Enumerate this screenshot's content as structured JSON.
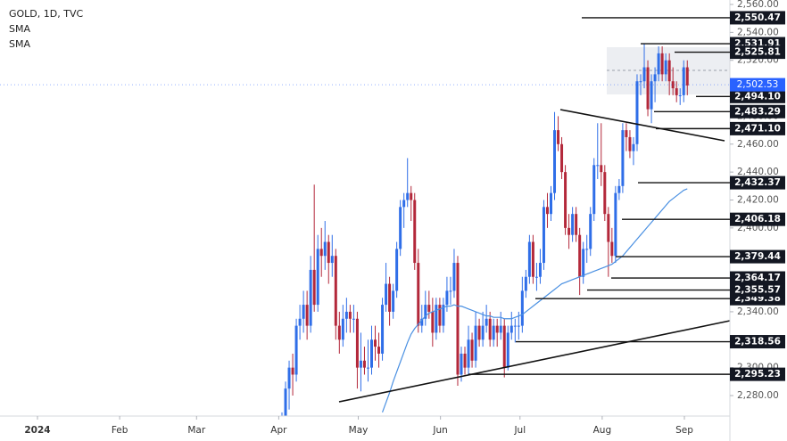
{
  "chart_data": {
    "type": "candlestick",
    "title": "GOLD, 1D, TVC",
    "indicators": [
      "SMA",
      "SMA"
    ],
    "up_color": "#2f6ee8",
    "down_color": "#b3283a",
    "sma_color": "#4a90e2",
    "ylim": [
      2280,
      2560
    ],
    "yticks": [
      {
        "value": 2280,
        "label": "2,280.00"
      },
      {
        "value": 2300,
        "label": "2,300.00"
      },
      {
        "value": 2320,
        "label": "2,320.00"
      },
      {
        "value": 2340,
        "label": "2,340.00"
      },
      {
        "value": 2360,
        "label": "2,360.00"
      },
      {
        "value": 2380,
        "label": "2,380.00"
      },
      {
        "value": 2400,
        "label": "2,400.00"
      },
      {
        "value": 2420,
        "label": "2,420.00"
      },
      {
        "value": 2440,
        "label": "2,440.00"
      },
      {
        "value": 2460,
        "label": "2,460.00"
      },
      {
        "value": 2480,
        "label": "2,480.00"
      },
      {
        "value": 2500,
        "label": "2,500.00"
      },
      {
        "value": 2520,
        "label": "2,520.00"
      },
      {
        "value": 2540,
        "label": "2,540.00"
      },
      {
        "value": 2560,
        "label": "2,560.00"
      }
    ],
    "xticks": [
      {
        "value": 1,
        "label": "2024"
      },
      {
        "value": 32,
        "label": "Feb"
      },
      {
        "value": 61,
        "label": "Mar"
      },
      {
        "value": 92,
        "label": "Apr"
      },
      {
        "value": 122,
        "label": "May"
      },
      {
        "value": 153,
        "label": "Jun"
      },
      {
        "value": 183,
        "label": "Jul"
      },
      {
        "value": 214,
        "label": "Aug"
      },
      {
        "value": 245,
        "label": "Sep"
      }
    ],
    "candles": [
      [
        2240,
        2268,
        2235,
        2262
      ],
      [
        2262,
        2290,
        2258,
        2285
      ],
      [
        2285,
        2305,
        2270,
        2300
      ],
      [
        2300,
        2310,
        2280,
        2295
      ],
      [
        2295,
        2335,
        2290,
        2330
      ],
      [
        2330,
        2345,
        2320,
        2335
      ],
      [
        2335,
        2355,
        2325,
        2345
      ],
      [
        2345,
        2355,
        2320,
        2330
      ],
      [
        2330,
        2380,
        2325,
        2370
      ],
      [
        2370,
        2431,
        2340,
        2345
      ],
      [
        2345,
        2395,
        2340,
        2385
      ],
      [
        2385,
        2400,
        2365,
        2380
      ],
      [
        2380,
        2405,
        2370,
        2390
      ],
      [
        2390,
        2395,
        2360,
        2375
      ],
      [
        2375,
        2395,
        2365,
        2380
      ],
      [
        2380,
        2385,
        2320,
        2330
      ],
      [
        2330,
        2340,
        2310,
        2320
      ],
      [
        2320,
        2345,
        2315,
        2335
      ],
      [
        2335,
        2350,
        2325,
        2340
      ],
      [
        2340,
        2345,
        2325,
        2335
      ],
      [
        2335,
        2345,
        2325,
        2335
      ],
      [
        2335,
        2340,
        2285,
        2300
      ],
      [
        2300,
        2325,
        2283,
        2305
      ],
      [
        2305,
        2315,
        2295,
        2300
      ],
      [
        2300,
        2320,
        2290,
        2300
      ],
      [
        2300,
        2330,
        2295,
        2320
      ],
      [
        2320,
        2330,
        2305,
        2315
      ],
      [
        2315,
        2325,
        2300,
        2310
      ],
      [
        2310,
        2350,
        2305,
        2345
      ],
      [
        2345,
        2375,
        2340,
        2360
      ],
      [
        2360,
        2365,
        2330,
        2340
      ],
      [
        2340,
        2360,
        2335,
        2355
      ],
      [
        2355,
        2390,
        2350,
        2385
      ],
      [
        2385,
        2420,
        2380,
        2415
      ],
      [
        2415,
        2425,
        2400,
        2420
      ],
      [
        2420,
        2450,
        2415,
        2425
      ],
      [
        2425,
        2430,
        2405,
        2420
      ],
      [
        2420,
        2425,
        2370,
        2375
      ],
      [
        2375,
        2385,
        2325,
        2330
      ],
      [
        2330,
        2345,
        2325,
        2335
      ],
      [
        2335,
        2355,
        2330,
        2345
      ],
      [
        2345,
        2355,
        2335,
        2340
      ],
      [
        2340,
        2350,
        2315,
        2325
      ],
      [
        2325,
        2350,
        2320,
        2345
      ],
      [
        2345,
        2350,
        2325,
        2330
      ],
      [
        2330,
        2350,
        2325,
        2345
      ],
      [
        2345,
        2365,
        2340,
        2355
      ],
      [
        2355,
        2365,
        2345,
        2355
      ],
      [
        2355,
        2385,
        2350,
        2375
      ],
      [
        2375,
        2380,
        2287,
        2295
      ],
      [
        2295,
        2315,
        2290,
        2310
      ],
      [
        2310,
        2315,
        2295,
        2300
      ],
      [
        2300,
        2330,
        2295,
        2320
      ],
      [
        2320,
        2325,
        2300,
        2305
      ],
      [
        2305,
        2340,
        2300,
        2330
      ],
      [
        2330,
        2335,
        2315,
        2320
      ],
      [
        2320,
        2340,
        2315,
        2330
      ],
      [
        2330,
        2345,
        2325,
        2335
      ],
      [
        2335,
        2340,
        2315,
        2320
      ],
      [
        2320,
        2335,
        2315,
        2330
      ],
      [
        2330,
        2335,
        2315,
        2325
      ],
      [
        2325,
        2340,
        2320,
        2330
      ],
      [
        2330,
        2335,
        2293,
        2300
      ],
      [
        2300,
        2330,
        2298,
        2325
      ],
      [
        2325,
        2340,
        2320,
        2330
      ],
      [
        2330,
        2335,
        2318,
        2330
      ],
      [
        2330,
        2340,
        2320,
        2330
      ],
      [
        2330,
        2365,
        2325,
        2355
      ],
      [
        2355,
        2370,
        2350,
        2365
      ],
      [
        2365,
        2395,
        2360,
        2390
      ],
      [
        2390,
        2395,
        2360,
        2365
      ],
      [
        2365,
        2375,
        2355,
        2365
      ],
      [
        2365,
        2385,
        2360,
        2375
      ],
      [
        2375,
        2420,
        2370,
        2415
      ],
      [
        2415,
        2425,
        2400,
        2410
      ],
      [
        2410,
        2430,
        2405,
        2425
      ],
      [
        2425,
        2483,
        2420,
        2470
      ],
      [
        2470,
        2480,
        2455,
        2460
      ],
      [
        2460,
        2465,
        2435,
        2440
      ],
      [
        2440,
        2445,
        2395,
        2400
      ],
      [
        2400,
        2410,
        2385,
        2395
      ],
      [
        2395,
        2415,
        2390,
        2410
      ],
      [
        2410,
        2415,
        2390,
        2395
      ],
      [
        2395,
        2400,
        2352,
        2365
      ],
      [
        2365,
        2390,
        2360,
        2385
      ],
      [
        2385,
        2395,
        2375,
        2385
      ],
      [
        2385,
        2415,
        2380,
        2410
      ],
      [
        2410,
        2450,
        2405,
        2445
      ],
      [
        2445,
        2475,
        2435,
        2445
      ],
      [
        2445,
        2475,
        2430,
        2440
      ],
      [
        2440,
        2445,
        2405,
        2410
      ],
      [
        2410,
        2415,
        2365,
        2390
      ],
      [
        2390,
        2400,
        2375,
        2380
      ],
      [
        2380,
        2430,
        2375,
        2425
      ],
      [
        2425,
        2435,
        2420,
        2430
      ],
      [
        2430,
        2475,
        2425,
        2470
      ],
      [
        2470,
        2475,
        2455,
        2465
      ],
      [
        2465,
        2470,
        2450,
        2455
      ],
      [
        2455,
        2465,
        2445,
        2460
      ],
      [
        2460,
        2510,
        2455,
        2505
      ],
      [
        2505,
        2510,
        2495,
        2505
      ],
      [
        2505,
        2532,
        2500,
        2515
      ],
      [
        2515,
        2520,
        2480,
        2485
      ],
      [
        2485,
        2510,
        2475,
        2505
      ],
      [
        2505,
        2515,
        2490,
        2510
      ],
      [
        2510,
        2530,
        2505,
        2525
      ],
      [
        2525,
        2530,
        2505,
        2510
      ],
      [
        2510,
        2525,
        2505,
        2520
      ],
      [
        2520,
        2525,
        2495,
        2505
      ],
      [
        2505,
        2515,
        2495,
        2500
      ],
      [
        2500,
        2505,
        2490,
        2495
      ],
      [
        2495,
        2500,
        2488,
        2495
      ],
      [
        2495,
        2520,
        2490,
        2515
      ],
      [
        2515,
        2520,
        2495,
        2502
      ]
    ],
    "sma": [
      null,
      null,
      null,
      null,
      null,
      null,
      null,
      null,
      null,
      null,
      null,
      null,
      null,
      null,
      null,
      null,
      null,
      null,
      null,
      null,
      null,
      null,
      null,
      null,
      null,
      null,
      null,
      null,
      2268,
      2275,
      2282,
      2290,
      2297,
      2304,
      2311,
      2318,
      2324,
      2328,
      2331,
      2334,
      2337,
      2339,
      2340,
      2341,
      2342,
      2343,
      2344,
      2344,
      2345,
      2344,
      2344,
      2343,
      2342,
      2341,
      2340,
      2339,
      2338,
      2337,
      2337,
      2336,
      2336,
      2336,
      2335,
      2335,
      2335,
      2336,
      2337,
      2338,
      2340,
      2342,
      2344,
      2346,
      2348,
      2350,
      2352,
      2354,
      2356,
      2358,
      2360,
      2361,
      2362,
      2363,
      2364,
      2365,
      2366,
      2367,
      2368,
      2369,
      2370,
      2371,
      2372,
      2373,
      2374,
      2376,
      2378,
      2380,
      2383,
      2386,
      2389,
      2392,
      2395,
      2398,
      2401,
      2404,
      2407,
      2410,
      2413,
      2416,
      2419,
      2421,
      2423,
      2425,
      2427,
      2428
    ],
    "levels": [
      {
        "value": 2550.47,
        "label": "2,550.47"
      },
      {
        "value": 2531.91,
        "label": "2,531.91"
      },
      {
        "value": 2525.81,
        "label": "2,525.81"
      },
      {
        "value": 2494.1,
        "label": "2,494.10"
      },
      {
        "value": 2483.29,
        "label": "2,483.29"
      },
      {
        "value": 2471.1,
        "label": "2,471.10"
      },
      {
        "value": 2432.37,
        "label": "2,432.37"
      },
      {
        "value": 2406.18,
        "label": "2,406.18"
      },
      {
        "value": 2379.44,
        "label": "2,379.44"
      },
      {
        "value": 2364.17,
        "label": "2,364.17"
      },
      {
        "value": 2349.38,
        "label": "2,349.38"
      },
      {
        "value": 2355.57,
        "label": "2,355.57"
      },
      {
        "value": 2318.56,
        "label": "2,318.56"
      },
      {
        "value": 2295.23,
        "label": "2,295.23"
      }
    ],
    "last_price": {
      "value": 2502.53,
      "label": "2,502.53",
      "color": "#2962ff"
    }
  }
}
